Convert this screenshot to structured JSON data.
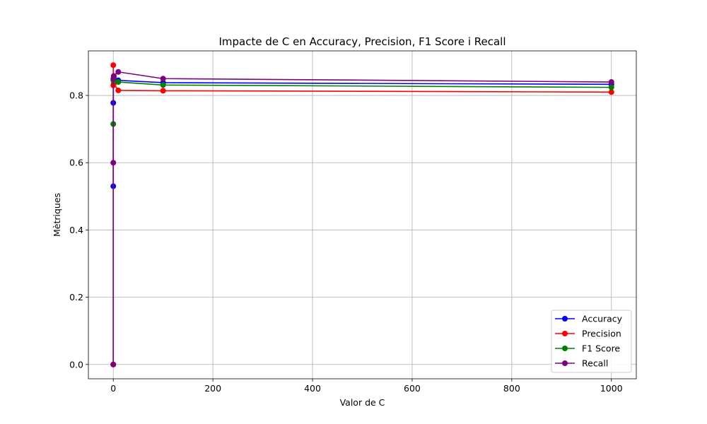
{
  "chart_data": {
    "type": "line",
    "title": "Impacte de C en Accuracy, Precision, F1 Score i Recall",
    "xlabel": "Valor de C",
    "ylabel": "Mètriques",
    "x": [
      0.001,
      0.01,
      0.1,
      1,
      10,
      100,
      1000
    ],
    "xlim": [
      -50,
      1050
    ],
    "ylim": [
      -0.0425,
      0.9325
    ],
    "x_ticks": [
      0,
      200,
      400,
      600,
      800,
      1000
    ],
    "x_tick_labels": [
      "0",
      "200",
      "400",
      "600",
      "800",
      "1000"
    ],
    "y_ticks": [
      0.0,
      0.2,
      0.4,
      0.6,
      0.8
    ],
    "y_tick_labels": [
      "0.0",
      "0.2",
      "0.4",
      "0.6",
      "0.8"
    ],
    "grid": true,
    "legend_position": "lower-right",
    "series": [
      {
        "name": "Accuracy",
        "color": "#0000ff",
        "values": [
          0.53,
          0.778,
          0.845,
          0.855,
          0.845,
          0.838,
          0.833
        ]
      },
      {
        "name": "Precision",
        "color": "#ff0000",
        "values": [
          0.0,
          0.89,
          0.83,
          0.835,
          0.815,
          0.814,
          0.81
        ]
      },
      {
        "name": "F1 Score",
        "color": "#008000",
        "values": [
          0.0,
          0.715,
          0.845,
          0.845,
          0.84,
          0.831,
          0.824
        ]
      },
      {
        "name": "Recall",
        "color": "#800080",
        "values": [
          0.0,
          0.6,
          0.85,
          0.858,
          0.87,
          0.85,
          0.84
        ]
      }
    ]
  }
}
